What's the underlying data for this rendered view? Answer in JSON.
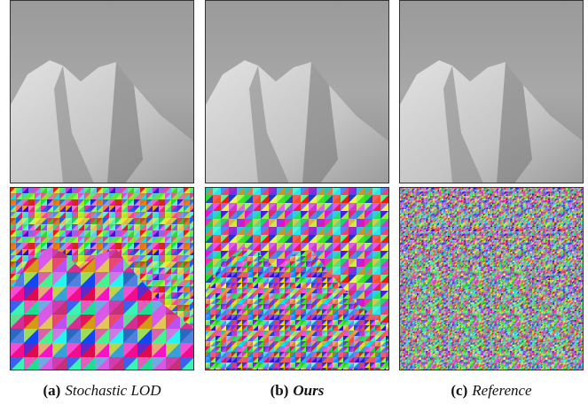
{
  "figure": {
    "panels": [
      {
        "label": "(a)",
        "caption": "Stochastic LOD"
      },
      {
        "label": "(b)",
        "caption": "Ours"
      },
      {
        "label": "(c)",
        "caption": "Reference"
      }
    ]
  }
}
